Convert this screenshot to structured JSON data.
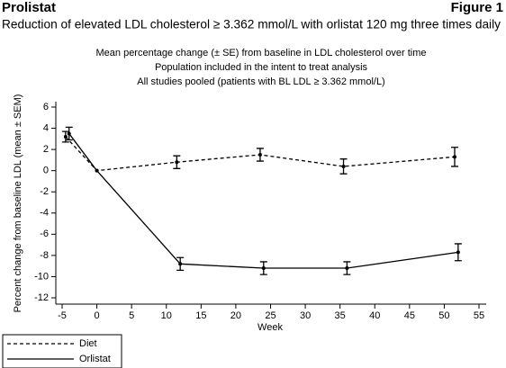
{
  "header": {
    "left": "Prolistat",
    "right": "Figure 1",
    "subtitle": "Reduction of elevated LDL cholesterol ≥ 3.362 mmol/L with orlistat 120 mg three times daily"
  },
  "chart_data": {
    "type": "line",
    "title_lines": [
      "Mean percentage change (± SE) from baseline in LDL cholesterol over time",
      "Population included in the intent to treat analysis",
      "All studies pooled (patients with BL LDL ≥ 3.362 mmol/L)"
    ],
    "x_label": "Week",
    "y_label": "Percent change from baseline LDL (mean ± SEM)",
    "xlim": [
      -5,
      55
    ],
    "xticks": [
      -5,
      0,
      5,
      10,
      15,
      20,
      25,
      30,
      35,
      40,
      45,
      50,
      55
    ],
    "ylim": [
      -12,
      6
    ],
    "yticks": [
      -12,
      -10,
      -8,
      -6,
      -4,
      -2,
      0,
      2,
      4,
      6
    ],
    "legend": "bottom-left",
    "series": [
      {
        "name": "Diet",
        "color": "#000000",
        "line_style": "dashed",
        "x": [
          -4.5,
          0,
          11.5,
          23.5,
          35.5,
          51.5
        ],
        "values": [
          3.2,
          0,
          0.8,
          1.5,
          0.4,
          1.3
        ],
        "errors": [
          0.5,
          0,
          0.6,
          0.6,
          0.7,
          0.9
        ]
      },
      {
        "name": "Orlistat",
        "color": "#000000",
        "line_style": "solid",
        "x": [
          -4,
          0,
          12,
          24,
          36,
          52
        ],
        "values": [
          3.5,
          0,
          -8.8,
          -9.2,
          -9.2,
          -7.7
        ],
        "errors": [
          0.6,
          0,
          0.6,
          0.6,
          0.6,
          0.8
        ]
      }
    ]
  }
}
